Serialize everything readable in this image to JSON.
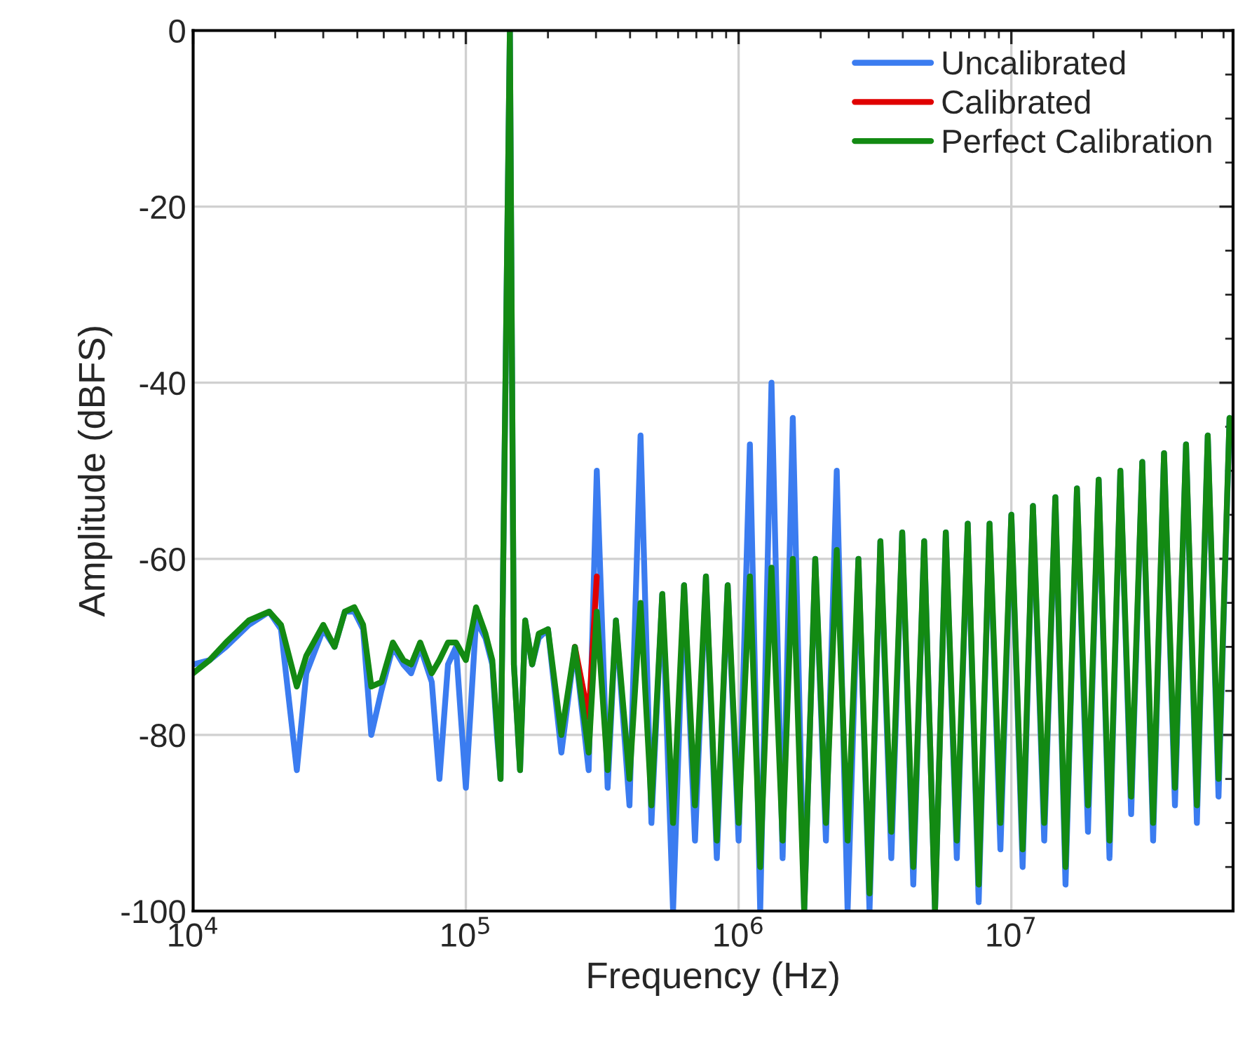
{
  "chart_data": {
    "type": "line",
    "xlabel": "Frequency (Hz)",
    "ylabel": "Amplitude (dBFS)",
    "log": "x",
    "grid": true,
    "legend": "top right",
    "line_style": "solid",
    "marker": "none",
    "xlim": [
      10000,
      65000000
    ],
    "ylim": [
      -100,
      0
    ],
    "xticks": [
      {
        "value": 10000,
        "label": "10$^{4}$"
      },
      {
        "value": 100000,
        "label": "10$^{5}$"
      },
      {
        "value": 1000000,
        "label": "10$^{6}$"
      },
      {
        "value": 10000000,
        "label": "10$^{7}$"
      }
    ],
    "yticks": [
      -100,
      -80,
      -60,
      -40,
      -20,
      0
    ],
    "x": [
      10000,
      11500,
      13200,
      16000,
      19000,
      21000,
      24000,
      26000,
      30000,
      33000,
      36000,
      39000,
      42000,
      45000,
      49000,
      54000,
      59000,
      63000,
      68000,
      75000,
      80000,
      86000,
      92000,
      100000,
      109000,
      118000,
      125000,
      130000,
      134000,
      145000,
      150000,
      158000,
      165000,
      175000,
      185000,
      200000,
      224000,
      251000,
      282000,
      302000,
      331000,
      355000,
      398000,
      437000,
      479000,
      525000,
      575000,
      631000,
      692000,
      759000,
      832000,
      912000,
      1000000,
      1100000,
      1200000,
      1320000,
      1450000,
      1580000,
      1740000,
      1910000,
      2090000,
      2290000,
      2510000,
      2750000,
      3020000,
      3310000,
      3630000,
      3980000,
      4370000,
      4790000,
      5250000,
      5750000,
      6310000,
      6920000,
      7590000,
      8320000,
      9120000,
      10000000,
      11000000,
      12000000,
      13200000,
      14500000,
      15800000,
      17400000,
      19100000,
      20900000,
      22900000,
      25100000,
      27500000,
      30200000,
      33100000,
      36300000,
      39800000,
      43700000,
      47900000,
      52500000,
      57500000,
      63100000
    ],
    "series": [
      {
        "name": "Uncalibrated",
        "color": "#3b7cf0",
        "values": [
          -72,
          -71.5,
          -70,
          -67.5,
          -66,
          -68,
          -84,
          -73,
          -68,
          -70,
          -66,
          -66,
          -68,
          -80,
          -75,
          -70,
          -72,
          -73,
          -70,
          -74,
          -85,
          -72,
          -70,
          -86,
          -67,
          -69,
          -72,
          -80,
          -85,
          0,
          -72,
          -84,
          -67,
          -72,
          -69,
          -68,
          -82,
          -70,
          -84,
          -50,
          -86,
          -67,
          -88,
          -46,
          -90,
          -64,
          -100,
          -63,
          -92,
          -62,
          -94,
          -63,
          -92,
          -47,
          -100,
          -40,
          -94,
          -44,
          -100,
          -60,
          -92,
          -50,
          -100,
          -60,
          -100,
          -58,
          -94,
          -57,
          -97,
          -58,
          -100,
          -57,
          -94,
          -56,
          -99,
          -56,
          -93,
          -55,
          -95,
          -54,
          -92,
          -53,
          -97,
          -52,
          -91,
          -51,
          -94,
          -50,
          -89,
          -49,
          -92,
          -48,
          -88,
          -47,
          -90,
          -46,
          -87,
          -44
        ]
      },
      {
        "name": "Calibrated",
        "color": "#e00000",
        "x": [
          251000,
          282000,
          302000
        ],
        "values": [
          -70,
          -78,
          -62
        ]
      },
      {
        "name": "Perfect Calibration",
        "color": "#138a13",
        "values": [
          -73,
          -71.5,
          -69.5,
          -67,
          -66,
          -67.5,
          -74.5,
          -71,
          -67.5,
          -70,
          -66,
          -65.5,
          -67.5,
          -74.5,
          -74,
          -69.5,
          -71.5,
          -72,
          -69.5,
          -73,
          -71.5,
          -69.5,
          -69.5,
          -71.5,
          -65.5,
          -68.5,
          -71.5,
          -79,
          -85,
          0,
          -72,
          -84,
          -67,
          -72,
          -68.5,
          -68,
          -80,
          -70,
          -82,
          -66,
          -84,
          -67,
          -85,
          -65,
          -88,
          -64,
          -90,
          -63,
          -88,
          -62,
          -92,
          -63,
          -90,
          -62,
          -95,
          -61,
          -92,
          -60,
          -100,
          -60,
          -90,
          -59,
          -92,
          -60,
          -98,
          -58,
          -91,
          -57,
          -95,
          -58,
          -100,
          -57,
          -92,
          -56,
          -97,
          -56,
          -90,
          -55,
          -93,
          -54,
          -90,
          -53,
          -95,
          -52,
          -88,
          -51,
          -92,
          -50,
          -87,
          -49,
          -90,
          -48,
          -86,
          -47,
          -88,
          -46,
          -85,
          -44
        ]
      }
    ]
  }
}
